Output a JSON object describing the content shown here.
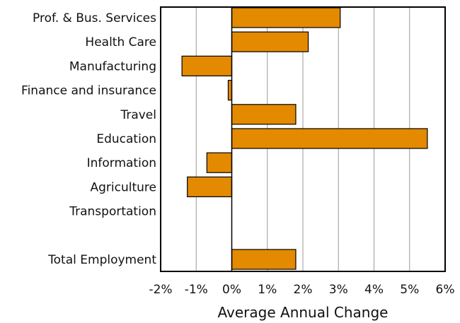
{
  "chart_data": {
    "type": "bar",
    "orientation": "horizontal",
    "categories": [
      "Prof. & Bus. Services",
      "Health Care",
      "Manufacturing",
      "Finance and insurance",
      "Travel",
      "Education",
      "Information",
      "Agriculture",
      "Transportation",
      "",
      "Total Employment"
    ],
    "values": [
      3.05,
      2.15,
      -1.4,
      -0.1,
      1.8,
      5.5,
      -0.7,
      -1.25,
      0.0,
      null,
      1.8
    ],
    "xlabel": "Average Annual Change",
    "xlim": [
      -2,
      6
    ],
    "x_ticks": [
      -2,
      -1,
      0,
      1,
      2,
      3,
      4,
      5,
      6
    ],
    "x_tick_labels": [
      "-2%",
      "-1%",
      "0%",
      "1%",
      "2%",
      "3%",
      "4%",
      "5%",
      "6%"
    ],
    "grid": "vertical",
    "bar_color": "#E38A00"
  }
}
